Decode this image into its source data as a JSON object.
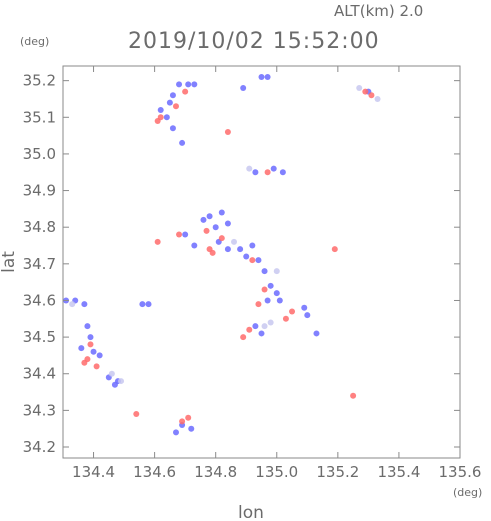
{
  "header": {
    "altitude_label": "ALT(km)  2.0",
    "timestamp": "2019/10/02 15:52:00"
  },
  "chart_data": {
    "type": "scatter",
    "title": "2019/10/02 15:52:00",
    "xlabel": "lon",
    "ylabel": "lat",
    "x_unit": "(deg)",
    "y_unit": "(deg)",
    "xlim": [
      134.3,
      135.6
    ],
    "ylim": [
      34.17,
      35.24
    ],
    "xticks": [
      134.4,
      134.6,
      134.8,
      135.0,
      135.2,
      135.4,
      135.6
    ],
    "xtick_labels": [
      "134.4",
      "134.6",
      "134.8",
      "135.0",
      "135.2",
      "135.4",
      "135.6"
    ],
    "yticks": [
      34.2,
      34.3,
      34.4,
      34.5,
      34.6,
      34.7,
      34.8,
      34.9,
      35.0,
      35.1,
      35.2
    ],
    "ytick_labels": [
      "34.2",
      "34.3",
      "34.4",
      "34.5",
      "34.6",
      "34.7",
      "34.8",
      "34.9",
      "35.0",
      "35.1",
      "35.2"
    ],
    "grid": false,
    "colors": {
      "approaching": "#6b6bff",
      "receding": "#ff6b6b",
      "weak": "#c8c8f0"
    },
    "series": [
      {
        "color_key": "approaching",
        "points": [
          [
            134.66,
            35.16
          ],
          [
            134.68,
            35.19
          ],
          [
            134.71,
            35.19
          ],
          [
            134.73,
            35.19
          ],
          [
            134.62,
            35.12
          ],
          [
            134.65,
            35.14
          ],
          [
            134.64,
            35.1
          ],
          [
            134.66,
            35.07
          ],
          [
            134.69,
            35.03
          ],
          [
            134.95,
            35.21
          ],
          [
            134.97,
            35.21
          ],
          [
            134.89,
            35.18
          ],
          [
            134.93,
            34.95
          ],
          [
            135.02,
            34.95
          ],
          [
            134.99,
            34.96
          ],
          [
            134.76,
            34.82
          ],
          [
            134.78,
            34.83
          ],
          [
            134.8,
            34.8
          ],
          [
            134.82,
            34.84
          ],
          [
            134.84,
            34.81
          ],
          [
            134.81,
            34.76
          ],
          [
            134.84,
            34.74
          ],
          [
            134.73,
            34.75
          ],
          [
            134.7,
            34.78
          ],
          [
            134.88,
            34.74
          ],
          [
            134.9,
            34.72
          ],
          [
            134.92,
            34.75
          ],
          [
            134.94,
            34.71
          ],
          [
            134.96,
            34.68
          ],
          [
            134.98,
            34.64
          ],
          [
            135.0,
            34.62
          ],
          [
            135.01,
            34.6
          ],
          [
            134.97,
            34.6
          ],
          [
            134.31,
            34.6
          ],
          [
            134.34,
            34.6
          ],
          [
            134.37,
            34.59
          ],
          [
            134.38,
            34.53
          ],
          [
            134.36,
            34.47
          ],
          [
            134.39,
            34.5
          ],
          [
            134.42,
            34.45
          ],
          [
            134.4,
            34.46
          ],
          [
            134.45,
            34.39
          ],
          [
            134.48,
            34.38
          ],
          [
            134.47,
            34.37
          ],
          [
            134.56,
            34.59
          ],
          [
            134.58,
            34.59
          ],
          [
            134.67,
            34.24
          ],
          [
            134.69,
            34.26
          ],
          [
            134.72,
            34.25
          ],
          [
            134.93,
            34.53
          ],
          [
            134.95,
            34.51
          ],
          [
            135.13,
            34.51
          ],
          [
            135.1,
            34.56
          ],
          [
            135.09,
            34.58
          ],
          [
            135.3,
            35.17
          ]
        ]
      },
      {
        "color_key": "receding",
        "points": [
          [
            134.67,
            35.13
          ],
          [
            134.62,
            35.1
          ],
          [
            134.61,
            35.09
          ],
          [
            134.7,
            35.17
          ],
          [
            134.84,
            35.06
          ],
          [
            134.97,
            34.95
          ],
          [
            135.29,
            35.17
          ],
          [
            135.31,
            35.16
          ],
          [
            134.77,
            34.79
          ],
          [
            134.82,
            34.77
          ],
          [
            134.78,
            34.74
          ],
          [
            134.79,
            34.73
          ],
          [
            134.68,
            34.78
          ],
          [
            134.61,
            34.76
          ],
          [
            134.92,
            34.71
          ],
          [
            134.96,
            34.63
          ],
          [
            134.94,
            34.59
          ],
          [
            135.03,
            34.55
          ],
          [
            135.05,
            34.57
          ],
          [
            134.39,
            34.48
          ],
          [
            134.38,
            34.44
          ],
          [
            134.41,
            34.42
          ],
          [
            134.37,
            34.43
          ],
          [
            134.54,
            34.29
          ],
          [
            134.69,
            34.27
          ],
          [
            134.71,
            34.28
          ],
          [
            134.89,
            34.5
          ],
          [
            134.91,
            34.52
          ],
          [
            135.25,
            34.34
          ],
          [
            135.19,
            34.74
          ]
        ]
      },
      {
        "color_key": "weak",
        "points": [
          [
            135.33,
            35.15
          ],
          [
            135.27,
            35.18
          ],
          [
            134.33,
            34.59
          ],
          [
            134.46,
            34.4
          ],
          [
            134.49,
            34.38
          ],
          [
            134.96,
            34.53
          ],
          [
            135.0,
            34.68
          ],
          [
            134.86,
            34.76
          ],
          [
            134.91,
            34.96
          ],
          [
            134.98,
            34.54
          ]
        ]
      }
    ]
  }
}
